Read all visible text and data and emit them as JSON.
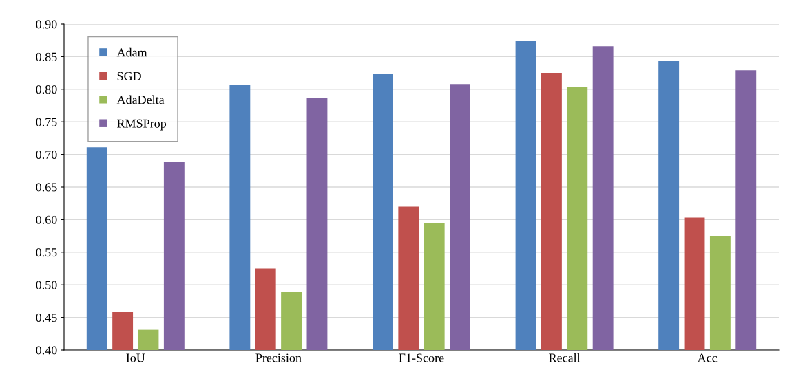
{
  "chart_data": {
    "type": "bar",
    "categories": [
      "IoU",
      "Precision",
      "F1-Score",
      "Recall",
      "Acc"
    ],
    "series": [
      {
        "name": "Adam",
        "color": "#4f81bd",
        "values": [
          0.711,
          0.807,
          0.824,
          0.874,
          0.844
        ]
      },
      {
        "name": "SGD",
        "color": "#c0504d",
        "values": [
          0.458,
          0.525,
          0.62,
          0.825,
          0.603
        ]
      },
      {
        "name": "AdaDelta",
        "color": "#9bbb59",
        "values": [
          0.431,
          0.489,
          0.594,
          0.803,
          0.575
        ]
      },
      {
        "name": "RMSProp",
        "color": "#8064a2",
        "values": [
          0.689,
          0.786,
          0.808,
          0.866,
          0.829
        ]
      }
    ],
    "ylim": [
      0.4,
      0.9
    ],
    "yticks": [
      {
        "value": 0.4,
        "label": "0.40"
      },
      {
        "value": 0.45,
        "label": "0.45"
      },
      {
        "value": 0.5,
        "label": "0.50"
      },
      {
        "value": 0.55,
        "label": "0.55"
      },
      {
        "value": 0.6,
        "label": "0.60"
      },
      {
        "value": 0.65,
        "label": "0.65"
      },
      {
        "value": 0.7,
        "label": "0.70"
      },
      {
        "value": 0.75,
        "label": "0.75"
      },
      {
        "value": 0.8,
        "label": "0.80"
      },
      {
        "value": 0.85,
        "label": "0.85"
      },
      {
        "value": 0.9,
        "label": "0.90"
      }
    ],
    "grid": "y",
    "legend": "top left"
  }
}
